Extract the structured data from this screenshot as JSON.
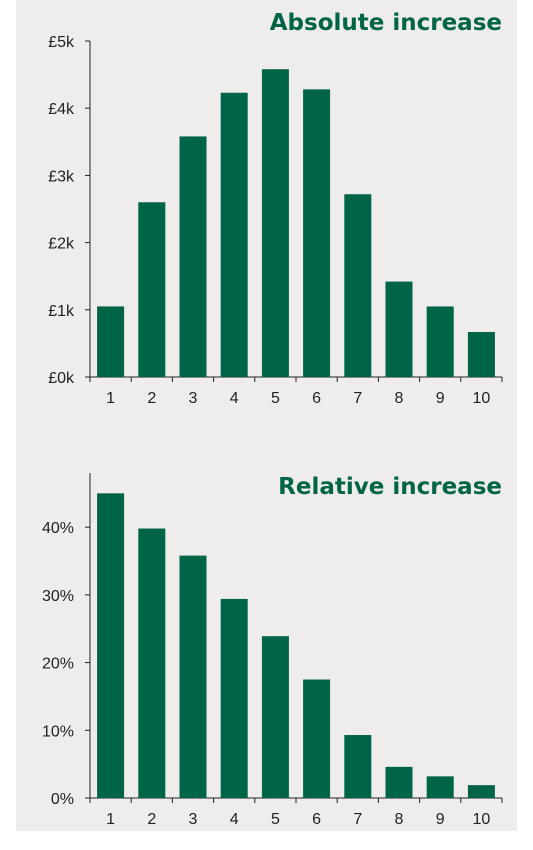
{
  "colors": {
    "bar": "#006548",
    "title": "#006548",
    "background": "#efedeb"
  },
  "chart_data": [
    {
      "type": "bar",
      "title": "Absolute increase",
      "categories": [
        "1",
        "2",
        "3",
        "4",
        "5",
        "6",
        "7",
        "8",
        "9",
        "10"
      ],
      "values": [
        1050,
        2600,
        3580,
        4230,
        4580,
        4280,
        2720,
        1420,
        1050,
        670
      ],
      "ylim": [
        0,
        5000
      ],
      "yticks": [
        0,
        1000,
        2000,
        3000,
        4000,
        5000
      ],
      "ytick_labels": [
        "£0k",
        "£1k",
        "£2k",
        "£3k",
        "£4k",
        "£5k"
      ],
      "xlabel": "",
      "ylabel": "",
      "grid": false,
      "legend": "none"
    },
    {
      "type": "bar",
      "title": "Relative increase",
      "categories": [
        "1",
        "2",
        "3",
        "4",
        "5",
        "6",
        "7",
        "8",
        "9",
        "10"
      ],
      "values": [
        45,
        39.8,
        35.8,
        29.4,
        23.9,
        17.5,
        9.3,
        4.6,
        3.2,
        1.9
      ],
      "ylim": [
        0,
        48
      ],
      "yticks": [
        0,
        10,
        20,
        30,
        40
      ],
      "ytick_labels": [
        "0%",
        "10%",
        "20%",
        "30%",
        "40%"
      ],
      "xlabel": "",
      "ylabel": "",
      "grid": false,
      "legend": "none"
    }
  ]
}
